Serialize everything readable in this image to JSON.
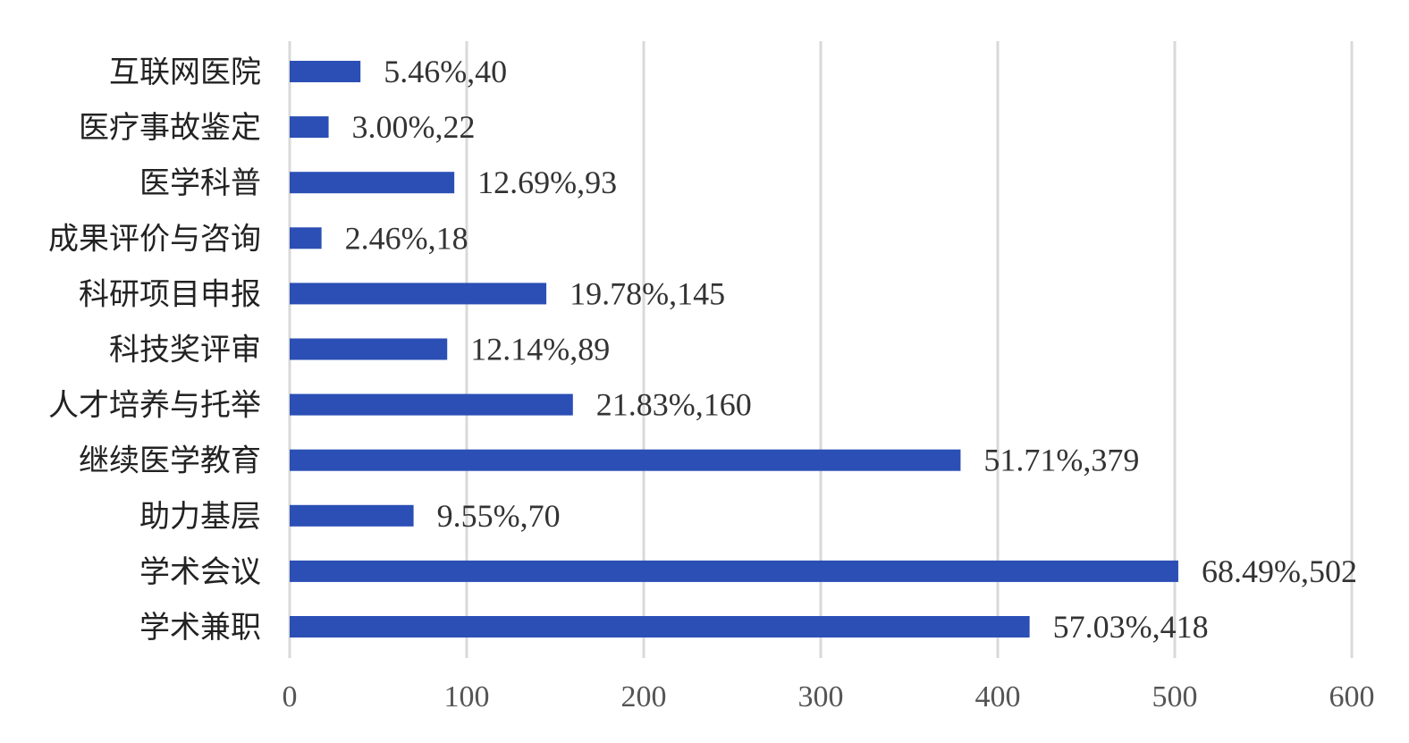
{
  "chart_data": {
    "type": "bar",
    "orientation": "horizontal",
    "categories": [
      "互联网医院",
      "医疗事故鉴定",
      "医学科普",
      "成果评价与咨询",
      "科研项目申报",
      "科技奖评审",
      "人才培养与托举",
      "继续医学教育",
      "助力基层",
      "学术会议",
      "学术兼职"
    ],
    "values": [
      40,
      22,
      93,
      18,
      145,
      89,
      160,
      379,
      70,
      502,
      418
    ],
    "data_labels": [
      "5.46%,40",
      "3.00%,22",
      "12.69%,93",
      "2.46%,18",
      "19.78%,145",
      "12.14%,89",
      "21.83%,160",
      "51.71%,379",
      "9.55%,70",
      "68.49%,502",
      "57.03%,418"
    ],
    "xlim": [
      0,
      600
    ],
    "xticks": [
      0,
      100,
      200,
      300,
      400,
      500,
      600
    ],
    "xtick_labels": [
      "0",
      "100",
      "200",
      "300",
      "400",
      "500",
      "600"
    ],
    "grid": true,
    "title": "",
    "xlabel": "",
    "ylabel": "",
    "bar_color": "#2b4fb5",
    "grid_color": "#d9d9d9"
  }
}
